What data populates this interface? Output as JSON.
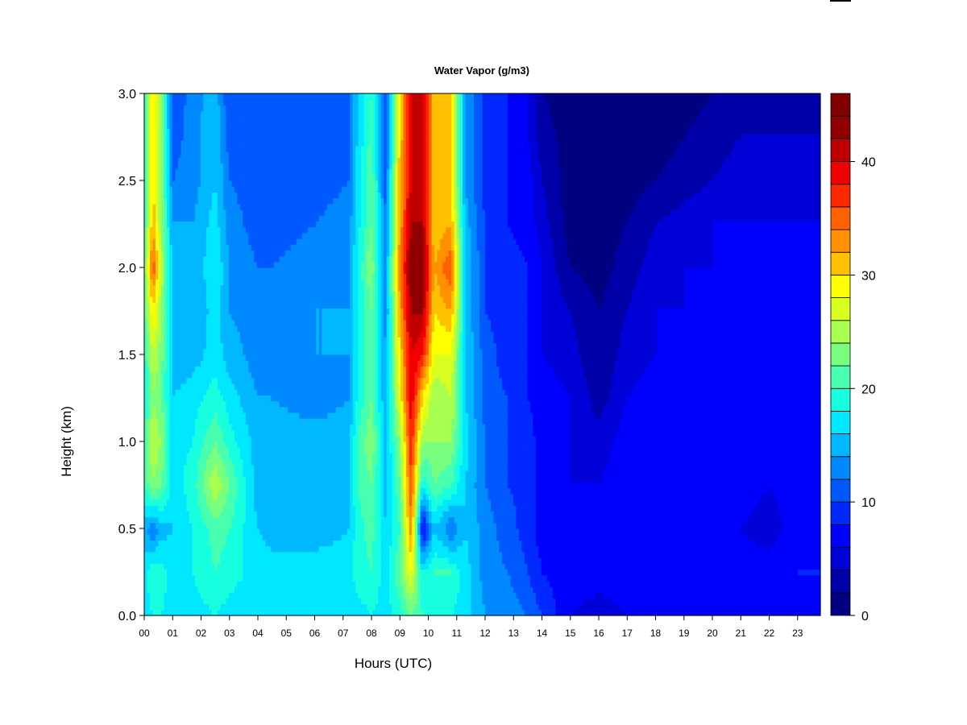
{
  "chart_data": {
    "type": "heatmap",
    "title": "Water Vapor (g/m3)",
    "xlabel": "Hours (UTC)",
    "ylabel": "Height (km)",
    "xlim": [
      0,
      23.8
    ],
    "ylim": [
      0,
      3.0
    ],
    "x_ticks": [
      {
        "value": 0,
        "label": "00"
      },
      {
        "value": 1,
        "label": "01"
      },
      {
        "value": 2,
        "label": "02"
      },
      {
        "value": 3,
        "label": "03"
      },
      {
        "value": 4,
        "label": "04"
      },
      {
        "value": 5,
        "label": "05"
      },
      {
        "value": 6,
        "label": "06"
      },
      {
        "value": 7,
        "label": "07"
      },
      {
        "value": 8,
        "label": "08"
      },
      {
        "value": 9,
        "label": "09"
      },
      {
        "value": 10,
        "label": "10"
      },
      {
        "value": 11,
        "label": "11"
      },
      {
        "value": 12,
        "label": "12"
      },
      {
        "value": 13,
        "label": "13"
      },
      {
        "value": 14,
        "label": "14"
      },
      {
        "value": 15,
        "label": "15"
      },
      {
        "value": 16,
        "label": "16"
      },
      {
        "value": 17,
        "label": "17"
      },
      {
        "value": 18,
        "label": "18"
      },
      {
        "value": 19,
        "label": "19"
      },
      {
        "value": 20,
        "label": "20"
      },
      {
        "value": 21,
        "label": "21"
      },
      {
        "value": 22,
        "label": "22"
      },
      {
        "value": 23,
        "label": "23"
      }
    ],
    "y_ticks": [
      {
        "value": 0.0,
        "label": "0.0"
      },
      {
        "value": 0.5,
        "label": "0.5"
      },
      {
        "value": 1.0,
        "label": "1.0"
      },
      {
        "value": 1.5,
        "label": "1.5"
      },
      {
        "value": 2.0,
        "label": "2.0"
      },
      {
        "value": 2.5,
        "label": "2.5"
      },
      {
        "value": 3.0,
        "label": "3.0"
      }
    ],
    "colorbar": {
      "range": [
        0,
        46
      ],
      "levels": 18,
      "ticks": [
        {
          "value": 0,
          "label": "0"
        },
        {
          "value": 10,
          "label": "10"
        },
        {
          "value": 20,
          "label": "20"
        },
        {
          "value": 30,
          "label": "30"
        },
        {
          "value": 40,
          "label": "40"
        }
      ],
      "colors": [
        "#000080",
        "#0000a8",
        "#0000d8",
        "#0000ff",
        "#0028ff",
        "#0058ff",
        "#0088ff",
        "#00b8ff",
        "#00e8ff",
        "#18ffe0",
        "#48ffb0",
        "#78ff80",
        "#a8ff50",
        "#d8ff20",
        "#ffff00",
        "#ffc000",
        "#ff9000",
        "#ff6000",
        "#ff2800",
        "#f00000",
        "#c00000",
        "#900000",
        "#800000"
      ]
    },
    "profile_heights_km": [
      0.0,
      0.25,
      0.5,
      0.75,
      1.0,
      1.25,
      1.5,
      1.75,
      2.0,
      2.25,
      2.5,
      2.75,
      3.0
    ],
    "profiles": [
      {
        "hour": 0.0,
        "values": [
          17,
          17,
          15,
          20,
          20,
          18,
          19,
          21,
          22,
          20,
          19,
          19,
          19
        ]
      },
      {
        "hour": 0.3,
        "values": [
          18,
          20,
          12,
          24,
          26,
          24,
          26,
          30,
          36,
          32,
          30,
          30,
          30
        ]
      },
      {
        "hour": 0.6,
        "values": [
          18,
          19,
          15,
          22,
          24,
          22,
          23,
          24,
          26,
          24,
          24,
          24,
          24
        ]
      },
      {
        "hour": 1.0,
        "values": [
          17,
          17,
          16,
          17,
          17,
          16,
          15,
          15,
          15,
          14,
          12,
          11,
          10
        ]
      },
      {
        "hour": 1.7,
        "values": [
          17,
          18,
          18,
          19,
          18,
          17,
          15,
          14,
          14,
          14,
          13,
          13,
          13
        ]
      },
      {
        "hour": 2.5,
        "values": [
          18,
          20,
          21,
          26,
          22,
          19,
          17,
          17,
          18,
          17,
          16,
          16,
          15
        ]
      },
      {
        "hour": 3.0,
        "values": [
          17,
          19,
          20,
          22,
          19,
          17,
          15,
          14,
          14,
          13,
          12,
          11,
          10
        ]
      },
      {
        "hour": 4.0,
        "values": [
          17,
          17,
          16,
          15,
          15,
          14,
          13,
          13,
          12,
          11,
          11,
          10,
          10
        ]
      },
      {
        "hour": 4.5,
        "values": [
          17,
          17,
          15,
          15,
          15,
          14,
          13,
          13,
          12,
          11,
          11,
          10,
          10
        ]
      },
      {
        "hour": 6.0,
        "values": [
          17,
          17,
          15,
          15,
          15,
          13,
          14,
          14,
          13,
          12,
          11,
          10,
          10
        ]
      },
      {
        "hour": 7.2,
        "values": [
          17,
          17,
          16,
          15,
          15,
          14,
          14,
          14,
          14,
          13,
          12,
          12,
          11
        ]
      },
      {
        "hour": 7.5,
        "values": [
          17,
          19,
          19,
          20,
          20,
          18,
          18,
          18,
          18,
          17,
          17,
          16,
          16
        ]
      },
      {
        "hour": 8.0,
        "values": [
          18,
          20,
          21,
          22,
          24,
          22,
          22,
          22,
          24,
          22,
          22,
          21,
          20
        ]
      },
      {
        "hour": 8.5,
        "values": [
          17,
          17,
          16,
          15,
          15,
          14,
          14,
          13,
          13,
          12,
          11,
          10,
          10
        ]
      },
      {
        "hour": 9.0,
        "values": [
          19,
          22,
          20,
          22,
          24,
          28,
          30,
          32,
          34,
          32,
          32,
          30,
          30
        ]
      },
      {
        "hour": 9.4,
        "values": [
          22,
          28,
          34,
          36,
          38,
          40,
          40,
          42,
          44,
          42,
          40,
          40,
          40
        ]
      },
      {
        "hour": 9.8,
        "values": [
          20,
          18,
          6,
          18,
          24,
          30,
          38,
          42,
          44,
          42,
          42,
          42,
          42
        ]
      },
      {
        "hour": 10.2,
        "values": [
          18,
          20,
          16,
          22,
          24,
          24,
          28,
          30,
          32,
          30,
          30,
          30,
          30
        ]
      },
      {
        "hour": 10.8,
        "values": [
          18,
          20,
          12,
          20,
          24,
          26,
          28,
          32,
          36,
          32,
          30,
          30,
          30
        ]
      },
      {
        "hour": 11.3,
        "values": [
          17,
          17,
          16,
          16,
          17,
          16,
          16,
          16,
          16,
          15,
          14,
          14,
          14
        ]
      },
      {
        "hour": 12.0,
        "values": [
          14,
          13,
          13,
          12,
          12,
          11,
          11,
          10,
          10,
          10,
          9,
          9,
          9
        ]
      },
      {
        "hour": 12.8,
        "values": [
          13,
          12,
          11,
          10,
          10,
          10,
          9,
          9,
          9,
          8,
          8,
          8,
          8
        ]
      },
      {
        "hour": 13.5,
        "values": [
          12,
          10,
          9,
          9,
          9,
          8,
          8,
          8,
          8,
          7,
          7,
          6,
          6
        ]
      },
      {
        "hour": 14.0,
        "values": [
          10,
          8,
          7,
          7,
          7,
          7,
          6,
          6,
          6,
          5,
          4,
          3,
          2
        ]
      },
      {
        "hour": 15.0,
        "values": [
          6,
          7,
          7,
          6,
          6,
          6,
          5,
          4,
          2,
          1,
          1,
          1,
          1
        ]
      },
      {
        "hour": 16.0,
        "values": [
          5,
          7,
          6,
          6,
          5,
          3,
          2,
          2,
          1,
          1,
          1,
          1,
          1
        ]
      },
      {
        "hour": 17.0,
        "values": [
          6,
          7,
          7,
          7,
          7,
          6,
          5,
          4,
          3,
          2,
          1,
          1,
          1
        ]
      },
      {
        "hour": 18.0,
        "values": [
          6,
          7,
          7,
          7,
          7,
          7,
          6,
          6,
          5,
          4,
          2,
          1,
          1
        ]
      },
      {
        "hour": 19.0,
        "values": [
          6,
          7,
          7,
          7,
          7,
          7,
          7,
          6,
          6,
          5,
          3,
          2,
          1
        ]
      },
      {
        "hour": 20.0,
        "values": [
          6,
          7,
          7,
          7,
          7,
          7,
          7,
          7,
          6,
          6,
          4,
          3,
          2
        ]
      },
      {
        "hour": 21.0,
        "values": [
          6,
          7,
          6,
          7,
          7,
          7,
          7,
          7,
          6,
          6,
          5,
          4,
          3
        ]
      },
      {
        "hour": 22.0,
        "values": [
          6,
          7,
          5,
          6,
          7,
          7,
          7,
          7,
          6,
          6,
          5,
          4,
          3
        ]
      },
      {
        "hour": 23.0,
        "values": [
          7,
          8,
          7,
          7,
          7,
          7,
          7,
          7,
          6,
          6,
          5,
          4,
          3
        ]
      },
      {
        "hour": 23.8,
        "values": [
          8,
          8,
          7,
          7,
          7,
          7,
          7,
          7,
          6,
          6,
          5,
          4,
          3
        ]
      }
    ]
  }
}
